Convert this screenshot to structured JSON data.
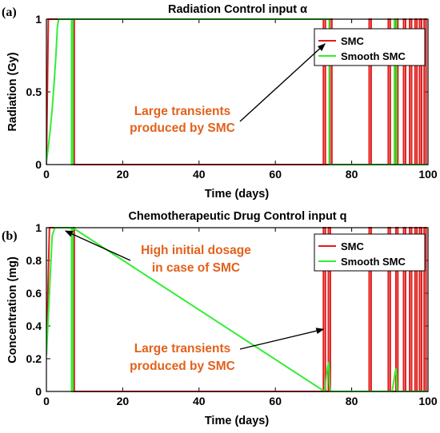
{
  "chart_data": [
    {
      "type": "line",
      "panel_label": "(a)",
      "title": "Radiation Control input α",
      "xlabel": "Time (days)",
      "ylabel": "Radiation (Gy)",
      "xlim": [
        0,
        100
      ],
      "ylim": [
        0,
        1
      ],
      "xticks": [
        "0",
        "20",
        "40",
        "60",
        "80",
        "100"
      ],
      "yticks": [
        "0",
        "0.5",
        "1"
      ],
      "legend_position": "top-right",
      "series": [
        {
          "name": "SMC",
          "color": "#e01b1b",
          "x": [
            0,
            0.5,
            1.5,
            2.2,
            2.2,
            6.9,
            6.9,
            7.3,
            7.3,
            72.6,
            72.6,
            73.1,
            73.1,
            74.3,
            74.3,
            74.8,
            74.8,
            84.6,
            84.6,
            85.1,
            85.1,
            89.6,
            89.6,
            90.1,
            90.1,
            91.6,
            91.6,
            92.1,
            92.1,
            93.6,
            93.6,
            94.1,
            94.1,
            95.2,
            95.2,
            95.7,
            95.7,
            96.6,
            96.6,
            97.1,
            97.1,
            97.8,
            97.8,
            98.3,
            98.3,
            99.0,
            99.0,
            99.5,
            99.5,
            100
          ],
          "y": [
            0,
            1,
            1,
            1,
            1,
            1,
            1,
            1,
            0,
            0,
            1,
            1,
            0,
            0,
            1,
            1,
            0,
            0,
            1,
            1,
            0,
            0,
            1,
            1,
            0,
            0,
            1,
            1,
            0,
            0,
            1,
            1,
            0,
            0,
            1,
            1,
            0,
            0,
            1,
            1,
            0,
            0,
            1,
            1,
            0,
            0,
            1,
            1,
            0,
            0
          ]
        },
        {
          "name": "Smooth SMC",
          "color": "#33ee33",
          "x": [
            0,
            0.5,
            1.0,
            1.5,
            2.0,
            2.5,
            2.9,
            3.2,
            6.6,
            6.6,
            6.9,
            6.9,
            73.6,
            73.6,
            74.1,
            74.1,
            91.2,
            91.2,
            91.7,
            91.7,
            100
          ],
          "y": [
            0.02,
            0.12,
            0.24,
            0.38,
            0.55,
            0.75,
            0.95,
            1,
            1,
            0,
            0,
            1,
            1,
            1,
            1,
            0,
            0,
            1,
            1,
            0,
            0
          ]
        }
      ],
      "annotations": [
        {
          "lines": [
            "Large transients",
            "produced by SMC"
          ],
          "arrow_to": [
            73,
            0.83
          ]
        }
      ]
    },
    {
      "type": "line",
      "panel_label": "(b)",
      "title": "Chemotherapeutic Drug Control input q",
      "xlabel": "Time (days)",
      "ylabel": "Concentration (mg)",
      "xlim": [
        0,
        100
      ],
      "ylim": [
        0,
        1
      ],
      "xticks": [
        "0",
        "20",
        "40",
        "60",
        "80",
        "100"
      ],
      "yticks": [
        "0",
        "0.2",
        "0.4",
        "0.6",
        "0.8",
        "1"
      ],
      "legend_position": "top-right",
      "series": [
        {
          "name": "SMC",
          "color": "#e01b1b",
          "x": [
            0,
            0.8,
            6.9,
            6.9,
            7.3,
            7.3,
            72.6,
            72.6,
            73.1,
            73.1,
            73.9,
            73.9,
            74.4,
            74.4,
            84.6,
            84.6,
            85.1,
            85.1,
            89.6,
            89.6,
            90.1,
            90.1,
            91.6,
            91.6,
            92.1,
            92.1,
            93.6,
            93.6,
            94.1,
            94.1,
            95.2,
            95.2,
            95.7,
            95.7,
            96.6,
            96.6,
            97.1,
            97.1,
            97.8,
            97.8,
            98.3,
            98.3,
            99.0,
            99.0,
            99.5,
            99.5,
            100
          ],
          "y": [
            0.22,
            1,
            1,
            1,
            1,
            0,
            0,
            1,
            1,
            0,
            0,
            1,
            1,
            0,
            0,
            1,
            1,
            0,
            0,
            1,
            1,
            0,
            0,
            1,
            1,
            0,
            0,
            1,
            1,
            0,
            0,
            1,
            1,
            0,
            0,
            1,
            1,
            0,
            0,
            1,
            1,
            0,
            0,
            1,
            1,
            0,
            0
          ]
        },
        {
          "name": "Smooth SMC",
          "color": "#33ee33",
          "x": [
            0,
            0.7,
            1.5,
            2.2,
            6.6,
            6.6,
            6.9,
            6.9,
            72.9,
            73.3,
            73.7,
            74.0,
            74.2,
            74.4,
            90.6,
            91.0,
            91.4,
            91.7,
            91.9,
            100
          ],
          "y": [
            0.22,
            0.55,
            0.95,
            1,
            1,
            0,
            0,
            1,
            0,
            0.08,
            0.15,
            0.18,
            0.05,
            0,
            0,
            0.06,
            0.12,
            0.14,
            0,
            0
          ]
        }
      ],
      "annotations": [
        {
          "lines": [
            "High initial dosage",
            "in case of SMC"
          ],
          "arrow_to": [
            5,
            0.98
          ]
        },
        {
          "lines": [
            "Large transients",
            "produced by SMC"
          ],
          "arrow_to": [
            72.6,
            0.38
          ]
        }
      ]
    }
  ]
}
